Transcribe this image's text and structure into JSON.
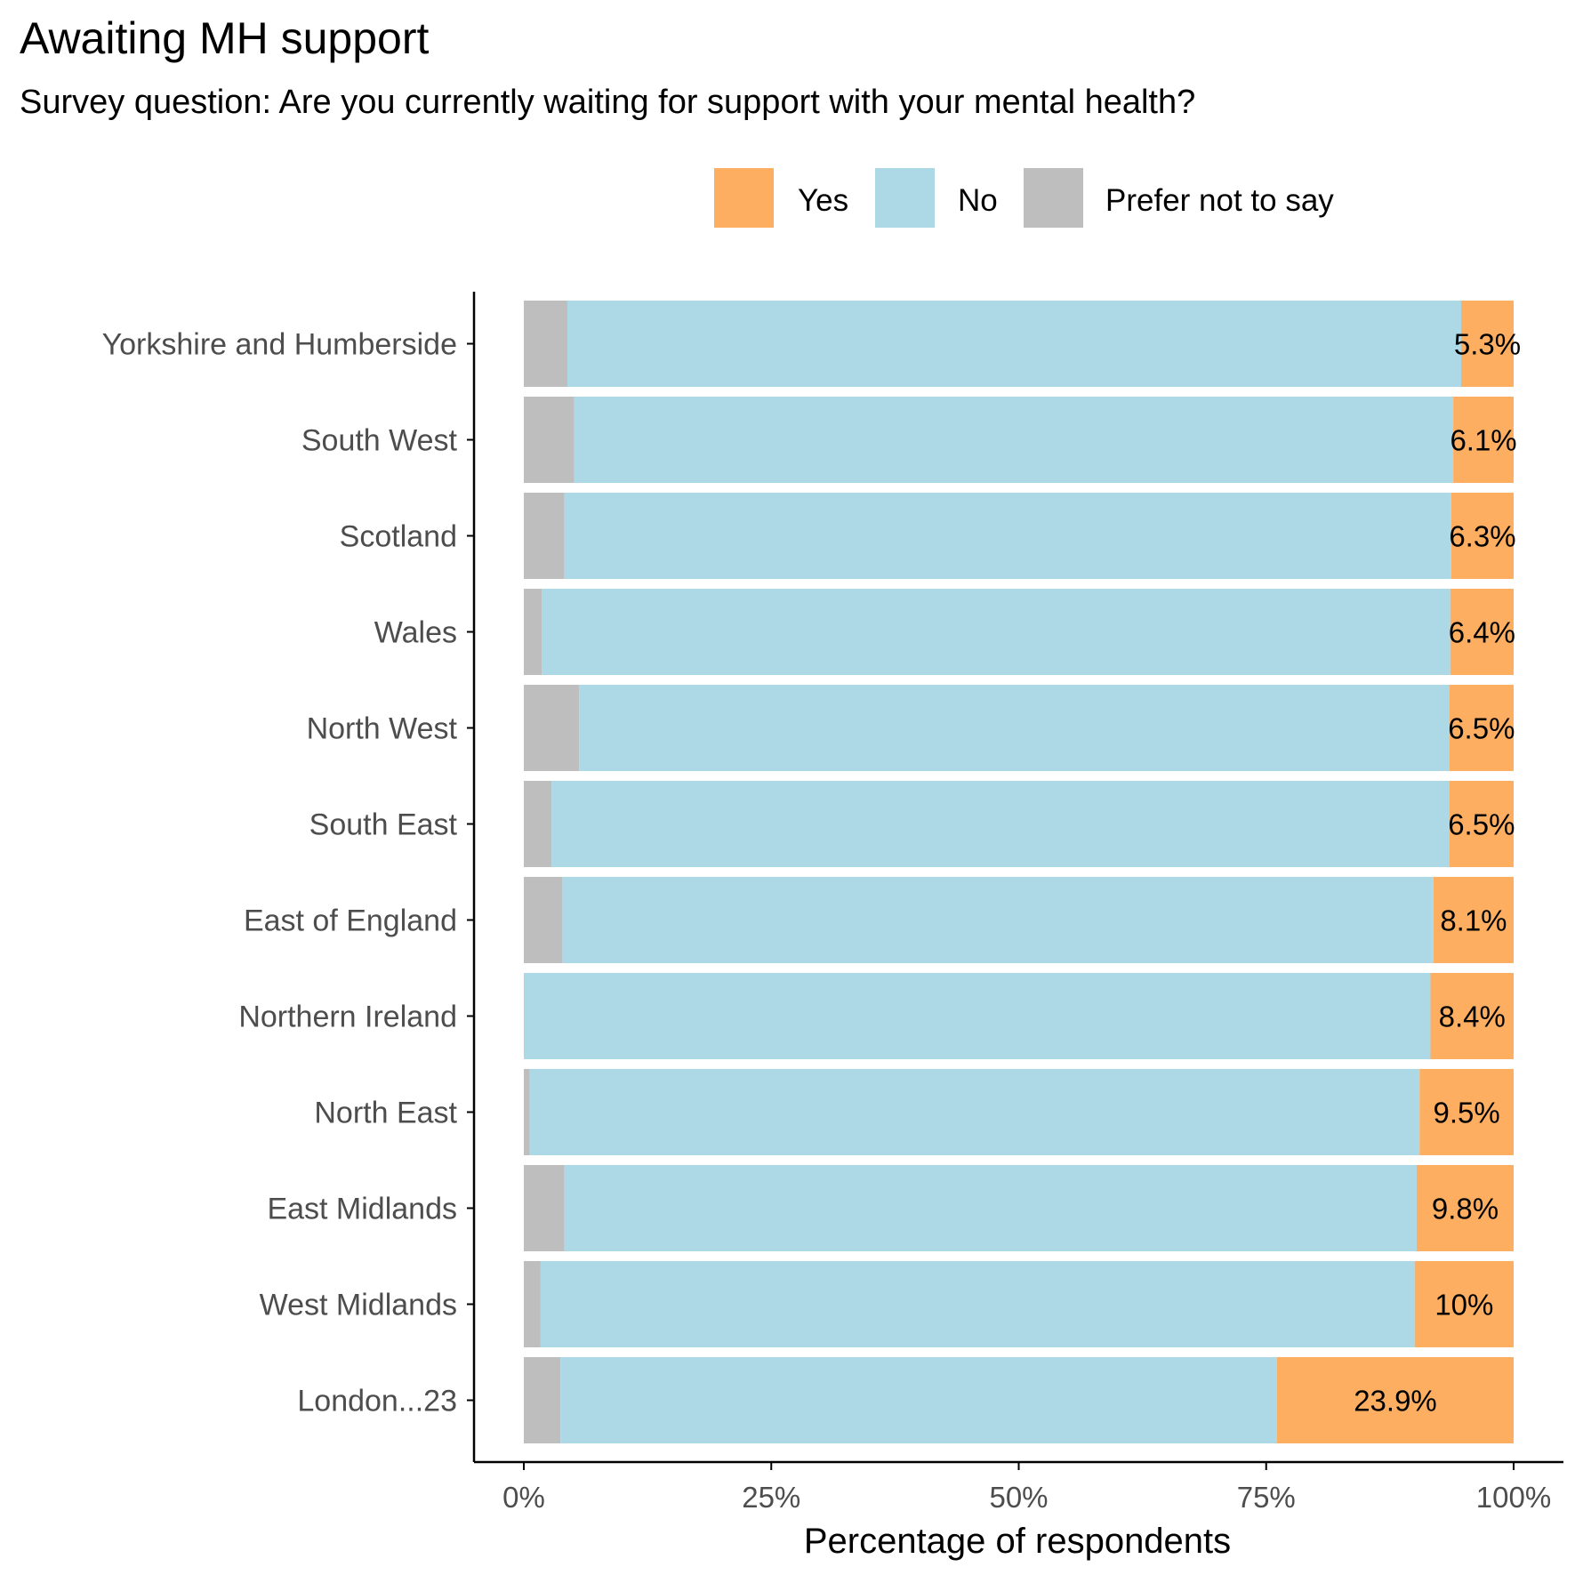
{
  "title": "Awaiting MH support",
  "subtitle": "Survey question: Are you currently waiting for support with your mental health?",
  "colors": {
    "yes": "#FDAE61",
    "no": "#ADD8E6",
    "prefer_not": "#BEBEBE",
    "axis": "#000000",
    "tick_label": "#4D4D4D"
  },
  "legend": {
    "position": "top",
    "items": [
      {
        "label": "Yes",
        "color": "#FDAE61"
      },
      {
        "label": "No",
        "color": "#ADD8E6"
      },
      {
        "label": "Prefer not to say",
        "color": "#BEBEBE"
      }
    ]
  },
  "chart_data": {
    "type": "bar",
    "orientation": "horizontal",
    "stacked": true,
    "title": "Awaiting MH support",
    "subtitle": "Survey question: Are you currently waiting for support with your mental health?",
    "xlabel": "Percentage of respondents",
    "ylabel": "",
    "xlim": [
      0,
      100
    ],
    "x_ticks": [
      0,
      25,
      50,
      75,
      100
    ],
    "x_tick_labels": [
      "0%",
      "25%",
      "50%",
      "75%",
      "100%"
    ],
    "grid": false,
    "categories": [
      "Yorkshire and Humberside",
      "South West",
      "Scotland",
      "Wales",
      "North West",
      "South East",
      "East of England",
      "Northern Ireland",
      "North East",
      "East Midlands",
      "West Midlands",
      "London...23"
    ],
    "series": [
      {
        "name": "Prefer not to say",
        "values": [
          4.4,
          5.1,
          4.1,
          1.8,
          5.6,
          2.8,
          3.9,
          0,
          0.6,
          4.1,
          1.7,
          3.7
        ]
      },
      {
        "name": "No",
        "values": [
          90.3,
          88.8,
          89.6,
          91.8,
          87.9,
          90.7,
          88.0,
          91.6,
          89.9,
          86.1,
          88.3,
          72.4
        ]
      },
      {
        "name": "Yes",
        "values": [
          5.3,
          6.1,
          6.3,
          6.4,
          6.5,
          6.5,
          8.1,
          8.4,
          9.5,
          9.8,
          10,
          23.9
        ]
      }
    ],
    "data_labels": [
      "5.3%",
      "6.1%",
      "6.3%",
      "6.4%",
      "6.5%",
      "6.5%",
      "8.1%",
      "8.4%",
      "9.5%",
      "9.8%",
      "10%",
      "23.9%"
    ]
  }
}
